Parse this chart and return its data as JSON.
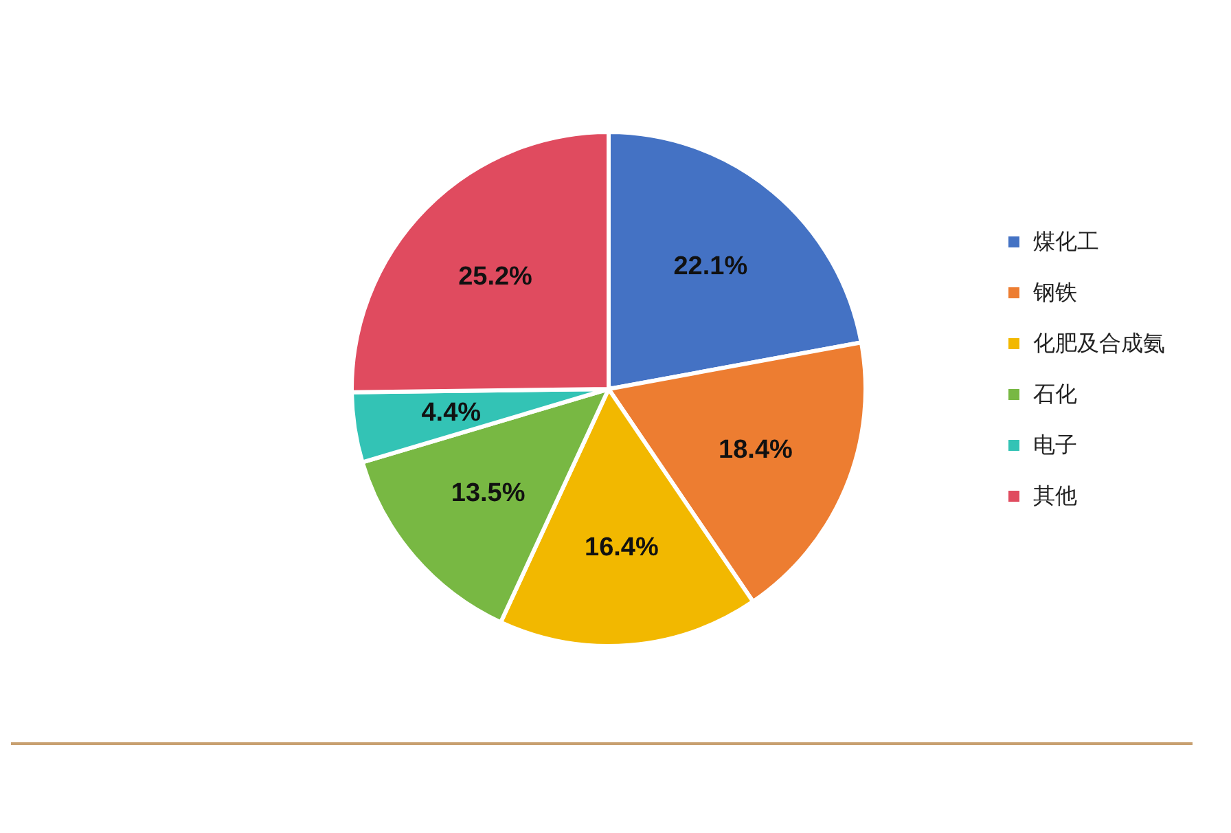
{
  "chart_data": {
    "type": "pie",
    "categories": [
      "煤化工",
      "钢铁",
      "化肥及合成氨",
      "石化",
      "电子",
      "其他"
    ],
    "values": [
      22.1,
      18.4,
      16.4,
      13.5,
      4.4,
      25.2
    ],
    "colors": [
      "#4472c4",
      "#ed7d31",
      "#f2b800",
      "#78b843",
      "#33c3b5",
      "#e04b5f"
    ],
    "value_labels": [
      "22.1%",
      "18.4%",
      "16.4%",
      "13.5%",
      "4.4%",
      "25.2%"
    ],
    "legend": "right"
  }
}
